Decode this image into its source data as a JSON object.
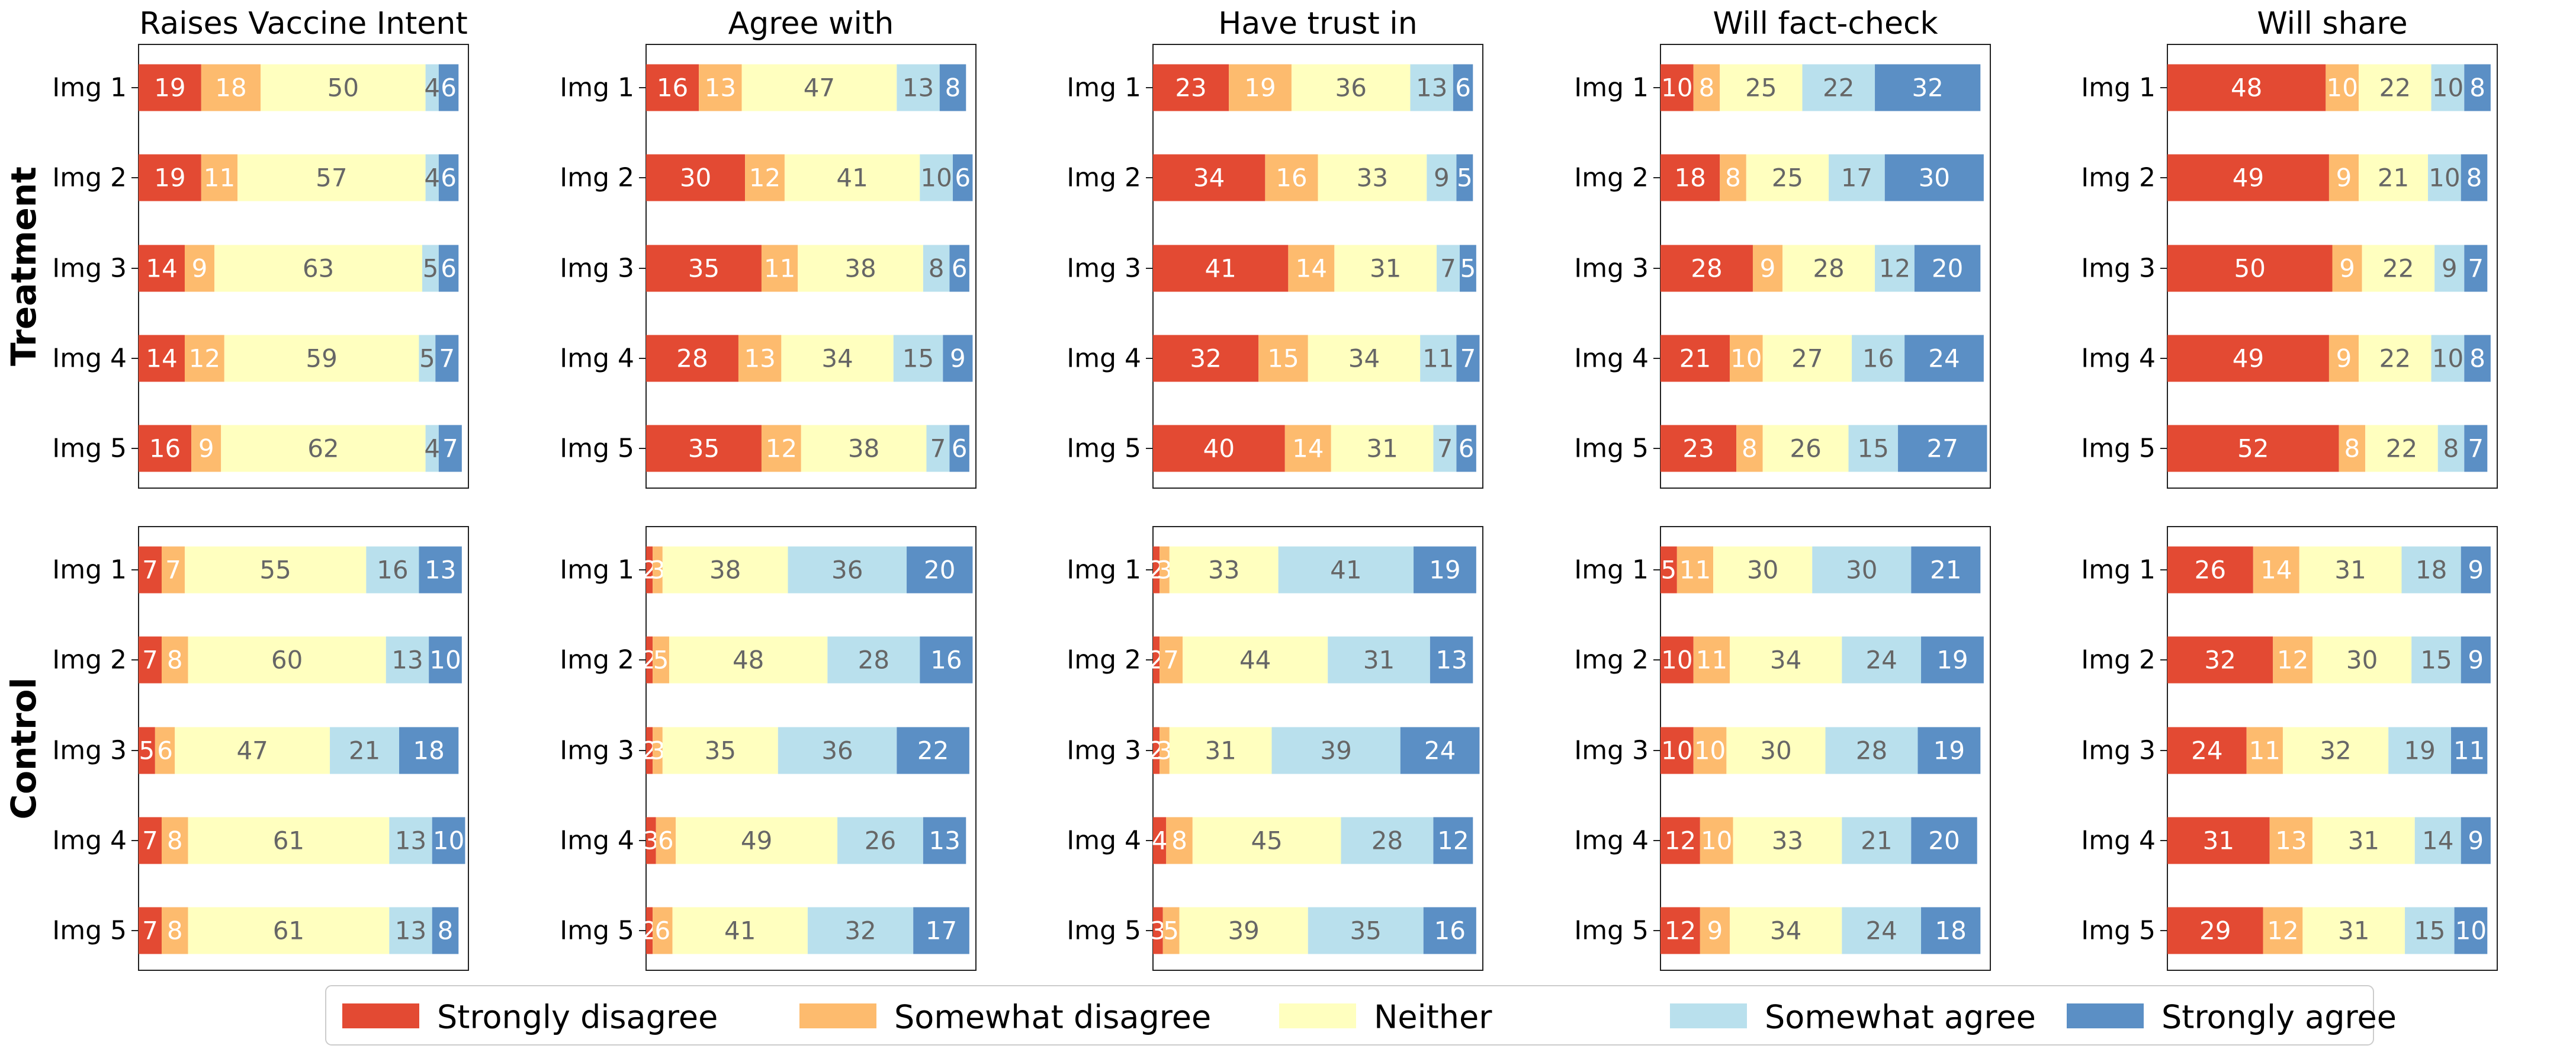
{
  "colors": {
    "Strongly disagree": "#e34a33",
    "Somewhat disagree": "#fdbb6e",
    "Neither": "#ffffbf",
    "Somewhat agree": "#b9e0ed",
    "Strongly agree": "#5b8fc5"
  },
  "label_colors": {
    "Strongly disagree": "#ffffff",
    "Somewhat disagree": "#ffffff",
    "Neither": "#666666",
    "Somewhat agree": "#666666",
    "Strongly agree": "#ffffff"
  },
  "row_labels": [
    "Treatment",
    "Control"
  ],
  "legend": [
    "Strongly disagree",
    "Somewhat disagree",
    "Neither",
    "Somewhat agree",
    "Strongly agree"
  ],
  "chart_data": {
    "type": "bar",
    "orientation": "horizontal-stacked",
    "categories": [
      "Img 1",
      "Img 2",
      "Img 3",
      "Img 4",
      "Img 5"
    ],
    "series_names": [
      "Strongly disagree",
      "Somewhat disagree",
      "Neither",
      "Somewhat agree",
      "Strongly agree"
    ],
    "xlim": [
      0,
      100
    ],
    "legend_position": "bottom",
    "grid": false,
    "panels": [
      {
        "group": "Treatment",
        "title": "Raises Vaccine Intent",
        "values": [
          [
            19,
            18,
            50,
            4,
            6
          ],
          [
            19,
            11,
            57,
            4,
            6
          ],
          [
            14,
            9,
            63,
            5,
            6
          ],
          [
            14,
            12,
            59,
            5,
            7
          ],
          [
            16,
            9,
            62,
            4,
            7
          ]
        ]
      },
      {
        "group": "Treatment",
        "title": "Agree with",
        "values": [
          [
            16,
            13,
            47,
            13,
            8
          ],
          [
            30,
            12,
            41,
            10,
            6
          ],
          [
            35,
            11,
            38,
            8,
            6
          ],
          [
            28,
            13,
            34,
            15,
            9
          ],
          [
            35,
            12,
            38,
            7,
            6
          ]
        ]
      },
      {
        "group": "Treatment",
        "title": "Have trust in",
        "values": [
          [
            23,
            19,
            36,
            13,
            6
          ],
          [
            34,
            16,
            33,
            9,
            5
          ],
          [
            41,
            14,
            31,
            7,
            5
          ],
          [
            32,
            15,
            34,
            11,
            7
          ],
          [
            40,
            14,
            31,
            7,
            6
          ]
        ]
      },
      {
        "group": "Treatment",
        "title": "Will fact-check",
        "values": [
          [
            10,
            8,
            25,
            22,
            32
          ],
          [
            18,
            8,
            25,
            17,
            30
          ],
          [
            28,
            9,
            28,
            12,
            20
          ],
          [
            21,
            10,
            27,
            16,
            24
          ],
          [
            23,
            8,
            26,
            15,
            27
          ]
        ]
      },
      {
        "group": "Treatment",
        "title": "Will share",
        "values": [
          [
            48,
            10,
            22,
            10,
            8
          ],
          [
            49,
            9,
            21,
            10,
            8
          ],
          [
            50,
            9,
            22,
            9,
            7
          ],
          [
            49,
            9,
            22,
            10,
            8
          ],
          [
            52,
            8,
            22,
            8,
            7
          ]
        ]
      },
      {
        "group": "Control",
        "title": "",
        "values": [
          [
            7,
            7,
            55,
            16,
            13
          ],
          [
            7,
            8,
            60,
            13,
            10
          ],
          [
            5,
            6,
            47,
            21,
            18
          ],
          [
            7,
            8,
            61,
            13,
            10
          ],
          [
            7,
            8,
            61,
            13,
            8
          ]
        ]
      },
      {
        "group": "Control",
        "title": "",
        "values": [
          [
            2,
            3,
            38,
            36,
            20
          ],
          [
            2,
            5,
            48,
            28,
            16
          ],
          [
            2,
            3,
            35,
            36,
            22
          ],
          [
            3,
            6,
            49,
            26,
            13
          ],
          [
            2,
            6,
            41,
            32,
            17
          ]
        ]
      },
      {
        "group": "Control",
        "title": "",
        "values": [
          [
            2,
            3,
            33,
            41,
            19
          ],
          [
            2,
            7,
            44,
            31,
            13
          ],
          [
            2,
            3,
            31,
            39,
            24
          ],
          [
            4,
            8,
            45,
            28,
            12
          ],
          [
            3,
            5,
            39,
            35,
            16
          ]
        ]
      },
      {
        "group": "Control",
        "title": "",
        "values": [
          [
            5,
            11,
            30,
            30,
            21
          ],
          [
            10,
            11,
            34,
            24,
            19
          ],
          [
            10,
            10,
            30,
            28,
            19
          ],
          [
            12,
            10,
            33,
            21,
            20
          ],
          [
            12,
            9,
            34,
            24,
            18
          ]
        ]
      },
      {
        "group": "Control",
        "title": "",
        "values": [
          [
            26,
            14,
            31,
            18,
            9
          ],
          [
            32,
            12,
            30,
            15,
            9
          ],
          [
            24,
            11,
            32,
            19,
            11
          ],
          [
            31,
            13,
            31,
            14,
            9
          ],
          [
            29,
            12,
            31,
            15,
            10
          ]
        ]
      }
    ]
  }
}
